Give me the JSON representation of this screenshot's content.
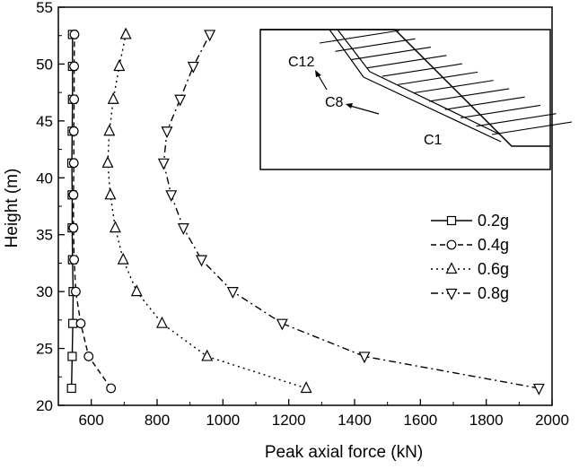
{
  "chart_data": {
    "type": "line",
    "xlabel": "Peak axial force (kN)",
    "ylabel": "Height (m)",
    "xlim": [
      500,
      2000
    ],
    "ylim": [
      20,
      55
    ],
    "xticks": [
      600,
      800,
      1000,
      1200,
      1400,
      1600,
      1800,
      2000
    ],
    "yticks": [
      20,
      25,
      30,
      35,
      40,
      45,
      50,
      55
    ],
    "heights": [
      21.5,
      24.3,
      27.2,
      30.0,
      32.8,
      35.6,
      38.5,
      41.3,
      44.1,
      46.9,
      49.8,
      52.6
    ],
    "legend_position": "right-middle",
    "series": [
      {
        "name": "0.2g",
        "marker": "square",
        "dash": "solid",
        "values": [
          540,
          542,
          544,
          545,
          543,
          542,
          542,
          541,
          542,
          543,
          543,
          543
        ]
      },
      {
        "name": "0.4g",
        "marker": "circle",
        "dash": "dash",
        "values": [
          660,
          592,
          568,
          553,
          548,
          546,
          546,
          547,
          547,
          548,
          548,
          549
        ]
      },
      {
        "name": "0.6g",
        "marker": "triangle-up",
        "dash": "dot",
        "values": [
          1253,
          952,
          815,
          738,
          697,
          673,
          658,
          650,
          655,
          667,
          685,
          705
        ]
      },
      {
        "name": "0.8g",
        "marker": "triangle-down",
        "dash": "dashdot",
        "values": [
          1960,
          1430,
          1180,
          1030,
          935,
          880,
          843,
          820,
          830,
          870,
          910,
          960
        ]
      }
    ],
    "inset": {
      "labels": [
        "C12",
        "C8",
        "C1"
      ]
    }
  }
}
